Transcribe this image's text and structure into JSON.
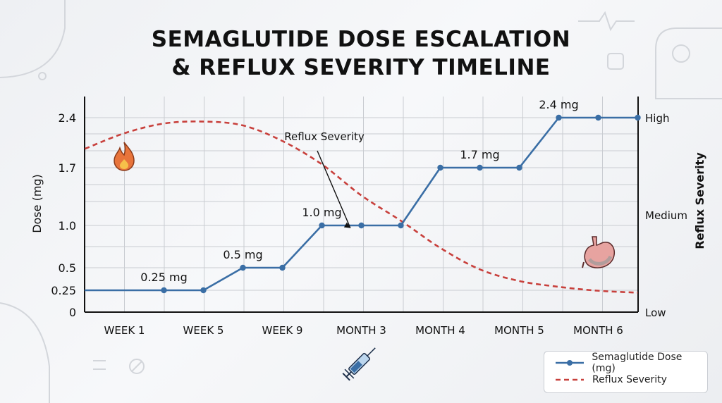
{
  "title": {
    "line1": "SEMAGLUTIDE DOSE ESCALATION",
    "line2": "& REFLUX SEVERITY TIMELINE"
  },
  "colors": {
    "dose": "#3a6ea5",
    "reflux": "#c8403c",
    "grid": "#c9ccd1",
    "axis": "#111111"
  },
  "icons": [
    "flame-icon",
    "stomach-icon",
    "syringe-icon"
  ],
  "chart_data": {
    "type": "line",
    "categories": [
      "WEEK 1",
      "WEEK 5",
      "WEEK 9",
      "MONTH 3",
      "MONTH 4",
      "MONTH 5",
      "MONTH 6"
    ],
    "y_left": {
      "label": "Dose (mg)",
      "ticks": [
        "0",
        "0.25",
        "0.5",
        "1.0",
        "1.7",
        "2.4"
      ],
      "tick_values": [
        0,
        0.25,
        0.5,
        1.0,
        1.7,
        2.4
      ],
      "range": [
        0,
        2.65
      ]
    },
    "y_right": {
      "label": "Reflux Severity",
      "ticks": [
        "Low",
        "Medium",
        "High"
      ],
      "tick_values": [
        0,
        0.5,
        1.0
      ]
    },
    "grid": true,
    "legend_position": "bottom-right",
    "series": [
      {
        "name": "Semaglutide Dose (mg)",
        "axis": "left",
        "style": "solid-with-markers",
        "x": [
          0,
          0.5,
          1,
          1.5,
          2,
          2.5,
          3,
          3.5,
          4,
          4.5,
          5,
          5.5,
          6,
          6.5
        ],
        "values": [
          0.25,
          0.25,
          0.25,
          0.5,
          0.5,
          1.0,
          1.0,
          1.0,
          1.7,
          1.7,
          1.7,
          2.4,
          2.4,
          2.4
        ],
        "markers": [
          1,
          2,
          3,
          4,
          5,
          6,
          7,
          8,
          9,
          10,
          11,
          12,
          13
        ]
      },
      {
        "name": "Reflux Severity",
        "axis": "right",
        "style": "dashed",
        "x": [
          -0.5,
          0,
          0.5,
          1,
          1.5,
          2,
          2.5,
          3,
          3.5,
          4,
          4.5,
          5,
          5.5,
          6,
          6.5
        ],
        "values": [
          0.84,
          0.92,
          0.97,
          0.98,
          0.96,
          0.88,
          0.76,
          0.6,
          0.47,
          0.33,
          0.22,
          0.16,
          0.13,
          0.11,
          0.1
        ]
      }
    ],
    "annotations": [
      {
        "text": "0.25 mg",
        "x": 0.5,
        "y": 0.25,
        "axis": "left"
      },
      {
        "text": "0.5 mg",
        "x": 1.5,
        "y": 0.5,
        "axis": "left"
      },
      {
        "text": "1.0 mg",
        "x": 2.5,
        "y": 1.0,
        "axis": "left"
      },
      {
        "text": "1.7 mg",
        "x": 4.5,
        "y": 1.7,
        "axis": "left"
      },
      {
        "text": "2.4 mg",
        "x": 5.5,
        "y": 2.4,
        "axis": "left"
      },
      {
        "text": "Reflux Severity",
        "x": 2.5,
        "y": 0.83,
        "axis": "right",
        "arrow_to": {
          "x": 3.2,
          "y": 0.65
        }
      }
    ]
  },
  "legend": {
    "items": [
      {
        "label": "Semaglutide Dose (mg)"
      },
      {
        "label": "Reflux Severity"
      }
    ]
  }
}
